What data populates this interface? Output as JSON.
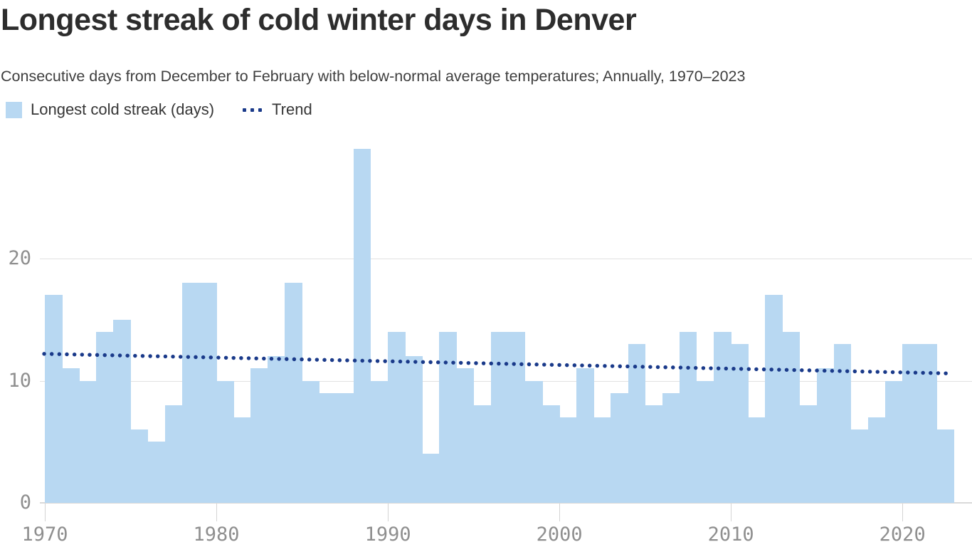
{
  "header": {
    "title": "Longest streak of cold winter days in Denver",
    "subtitle": "Consecutive days from December to February with below-normal average temperatures; Annually, 1970–2023"
  },
  "legend": {
    "series_label": "Longest cold streak (days)",
    "trend_label": "Trend"
  },
  "colors": {
    "bar": "#b8d8f2",
    "trend": "#1a3a8a",
    "axis_text": "#8f8f8f",
    "gridline": "#e2e2e2",
    "title_text": "#2d2d2d"
  },
  "chart_data": {
    "type": "bar",
    "title": "Longest streak of cold winter days in Denver",
    "subtitle": "Consecutive days from December to February with below-normal average temperatures; Annually, 1970–2023",
    "xlabel": "",
    "ylabel": "Longest cold streak (days)",
    "legend_position": "top-left",
    "grid": "horizontal",
    "ylim": [
      0,
      29
    ],
    "y_ticks": [
      0,
      10,
      20
    ],
    "x_ticks": [
      1970,
      1980,
      1990,
      2000,
      2010,
      2020
    ],
    "years": [
      1970,
      1971,
      1972,
      1973,
      1974,
      1975,
      1976,
      1977,
      1978,
      1979,
      1980,
      1981,
      1982,
      1983,
      1984,
      1985,
      1986,
      1987,
      1988,
      1989,
      1990,
      1991,
      1992,
      1993,
      1994,
      1995,
      1996,
      1997,
      1998,
      1999,
      2000,
      2001,
      2002,
      2003,
      2004,
      2005,
      2006,
      2007,
      2008,
      2009,
      2010,
      2011,
      2012,
      2013,
      2014,
      2015,
      2016,
      2017,
      2018,
      2019,
      2020,
      2021,
      2022
    ],
    "values": [
      17,
      11,
      10,
      14,
      15,
      6,
      5,
      8,
      18,
      18,
      10,
      7,
      11,
      12,
      18,
      10,
      9,
      9,
      29,
      10,
      14,
      12,
      4,
      14,
      11,
      8,
      14,
      14,
      10,
      8,
      7,
      11,
      7,
      9,
      13,
      8,
      9,
      14,
      10,
      14,
      13,
      7,
      17,
      14,
      8,
      11,
      13,
      6,
      7,
      10,
      13,
      13,
      6
    ],
    "trend": {
      "name": "Trend",
      "style": "dotted",
      "y_start": 12.2,
      "y_end": 10.6
    }
  }
}
